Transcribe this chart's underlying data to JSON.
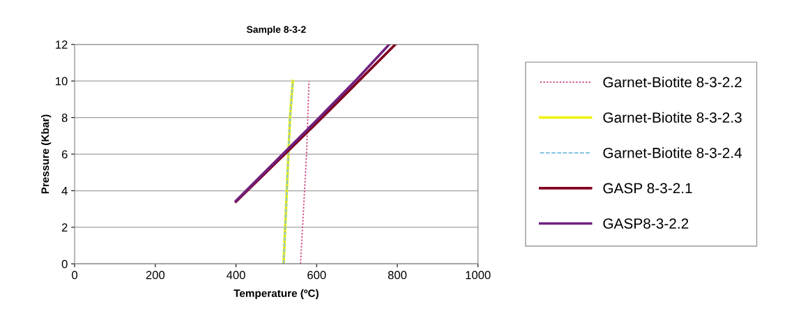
{
  "chart_data": {
    "type": "line",
    "title": "Sample 8-3-2",
    "xlabel": "Temperature (ºC)",
    "ylabel": "Pressure (Kbar)",
    "xlim": [
      0,
      1000
    ],
    "xticks": [
      0,
      200,
      400,
      600,
      800,
      1000
    ],
    "ylim": [
      0,
      12
    ],
    "yticks": [
      0,
      2,
      4,
      6,
      8,
      10,
      12
    ],
    "grid": "y",
    "legend": "right",
    "marker": "none",
    "series": [
      {
        "name": "Garnet-Biotite 8-3-2.2",
        "color": "#d0508a",
        "line_style": "dotted",
        "x": [
          560,
          565,
          570,
          575,
          578,
          581
        ],
        "values": [
          0,
          2,
          4,
          6,
          8,
          10
        ]
      },
      {
        "name": "Garnet-Biotite 8-3-2.3",
        "color": "#f0f000",
        "line_style": "solid",
        "x": [
          518,
          522,
          526,
          530,
          534,
          541
        ],
        "values": [
          0,
          2,
          4,
          6,
          8,
          10
        ]
      },
      {
        "name": "Garnet-Biotite 8-3-2.4",
        "color": "#80c0e0",
        "line_style": "dashed",
        "x": [
          518,
          522,
          526,
          530,
          534,
          541
        ],
        "values": [
          0,
          2,
          4,
          6,
          8,
          10
        ]
      },
      {
        "name": "GASP 8-3-2.1",
        "color": "#800020",
        "line_style": "solid",
        "x": [
          400,
          600,
          700,
          795
        ],
        "values": [
          3.4,
          7.7,
          9.9,
          12
        ]
      },
      {
        "name": "GASP8-3-2.2",
        "color": "#702080",
        "line_style": "solid",
        "x": [
          400,
          600,
          700,
          780
        ],
        "values": [
          3.45,
          7.85,
          10.1,
          12
        ]
      }
    ]
  }
}
